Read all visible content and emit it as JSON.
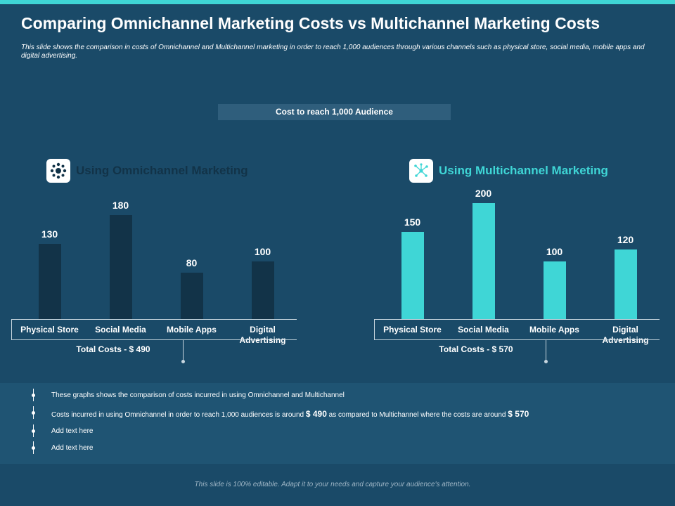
{
  "title": "Comparing Omnichannel Marketing Costs vs Multichannel Marketing Costs",
  "subtitle": "This slide shows the comparison in costs of Omnichannel and Multichannel marketing in order to reach 1,000 audiences through various channels such as physical store, social media, mobile apps and digital advertising.",
  "banner": "Cost to reach 1,000 Audience",
  "colors": {
    "omni_bar": "#123348",
    "multi_bar": "#3fd6d6",
    "background": "#1a4a68"
  },
  "omnichannel": {
    "heading": "Using Omnichannel Marketing",
    "icon": "network-hub-icon",
    "total": "Total Costs - $ 490"
  },
  "multichannel": {
    "heading": "Using Multichannel Marketing",
    "icon": "network-nodes-icon",
    "total": "Total Costs - $ 570"
  },
  "chart_data": [
    {
      "type": "bar",
      "categories": [
        "Physical Store",
        "Social Media",
        "Mobile Apps",
        "Digital Advertising"
      ],
      "values": [
        130,
        180,
        80,
        100
      ],
      "title": "Using Omnichannel Marketing",
      "ylim": [
        0,
        200
      ],
      "grid": false
    },
    {
      "type": "bar",
      "categories": [
        "Physical Store",
        "Social Media",
        "Mobile Apps",
        "Digital Advertising"
      ],
      "values": [
        150,
        200,
        100,
        120
      ],
      "title": "Using Multichannel Marketing",
      "ylim": [
        0,
        200
      ],
      "grid": false
    }
  ],
  "notes": [
    {
      "parts": [
        {
          "t": "These graphs shows the comparison of costs incurred in using Omnichannel and Multichannel",
          "big": false
        }
      ]
    },
    {
      "parts": [
        {
          "t": "Costs incurred in using Omnichannel in order to reach 1,000 audiences is around ",
          "big": false
        },
        {
          "t": "$ 490",
          "big": true
        },
        {
          "t": " as compared to Multichannel where the costs are around ",
          "big": false
        },
        {
          "t": "$ 570",
          "big": true
        }
      ]
    },
    {
      "parts": [
        {
          "t": "Add text here",
          "big": false
        }
      ]
    },
    {
      "parts": [
        {
          "t": "Add text here",
          "big": false
        }
      ]
    }
  ],
  "footer": "This slide is 100% editable. Adapt it to your needs and capture your audience's attention."
}
